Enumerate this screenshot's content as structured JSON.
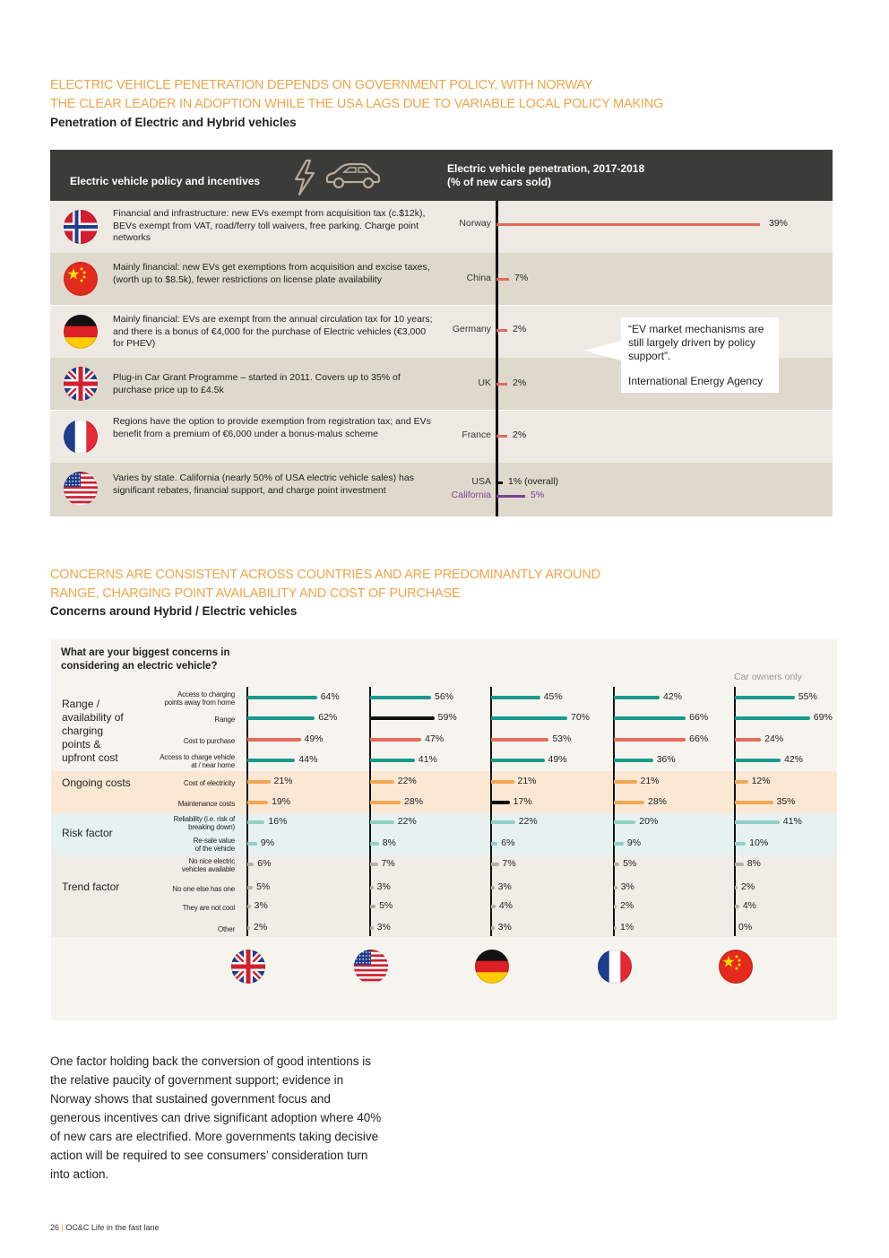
{
  "section1": {
    "title_line1": "ELECTRIC VEHICLE PENETRATION DEPENDS ON GOVERNMENT POLICY, WITH NORWAY",
    "title_line2": "THE CLEAR LEADER IN ADOPTION WHILE THE USA LAGS  DUE TO VARIABLE LOCAL POLICY MAKING",
    "subtitle": "Penetration of Electric and Hybrid vehicles",
    "header_left": "Electric vehicle policy and incentives",
    "header_right_line1": "Electric vehicle penetration, 2017-2018",
    "header_right_line2": "(% of new cars sold)",
    "quote_text": "“EV market mechanisms are still largely driven by policy support”.",
    "quote_source": "International Energy Agency"
  },
  "section2": {
    "title_line1": "CONCERNS ARE CONSISTENT ACROSS COUNTRIES AND ARE PREDOMINANTLY AROUND",
    "title_line2": "RANGE, CHARGING POINT AVAILABILITY AND COST OF PURCHASE",
    "subtitle": "Concerns around Hybrid / Electric vehicles",
    "question_line1": "What are your biggest concerns in",
    "question_line2": "considering an electric vehicle?",
    "car_owners_note": "Car owners only"
  },
  "body_text": "One factor holding back the conversion of good intentions is the relative paucity of government support; evidence in Norway shows that sustained government focus and generous incentives can drive significant adoption where 40% of new cars are electrified. More governments taking decisive action will be required to see consumers’ consideration turn into action.",
  "footer": {
    "page": "26",
    "sep": "|",
    "brand": "OC&C",
    "title": "Life in the fast lane"
  },
  "colors": {
    "orange_heading": "#f0a54a",
    "header_dark": "#3b3b3a",
    "bar_red": "#e06a5a",
    "bar_purple": "#7b3f98",
    "teal": "#1a9a8f",
    "salmon": "#e56b5d",
    "orange": "#f2a653",
    "light_teal": "#8fd0c8",
    "grey": "#b8ad9f"
  },
  "chart_data": [
    {
      "type": "bar",
      "title": "Electric vehicle penetration, 2017-2018 (% of new cars sold)",
      "categories": [
        "Norway",
        "China",
        "Germany",
        "UK",
        "France",
        "USA",
        "California"
      ],
      "values": [
        39,
        7,
        2,
        2,
        2,
        1,
        5
      ],
      "value_labels": [
        "39%",
        "7%",
        "2%",
        "2%",
        "2%",
        "1% (overall)",
        "5%"
      ],
      "policies": [
        "Financial and infrastructure: new EVs exempt from acquisition tax (c.$12k), BEVs exempt from VAT, road/ferry toll waivers, free parking. Charge point networks",
        "Mainly financial: new EVs get exemptions from acquisition and excise taxes, (worth up to $8.5k), fewer restrictions on license plate availability",
        "Mainly financial: EVs are exempt from the annual circulation tax for 10 years; and there is a bonus of €4,000 for the purchase of Electric vehicles (€3,000 for PHEV)",
        "Plug-in Car Grant Programme – started in 2011. Covers up to 35% of purchase price up to £4.5k",
        "Regions have the option to provide exemption from registration tax; and EVs benefit from a premium of €6,000 under a bonus-malus scheme",
        "Varies by state. California (nearly 50% of USA electric vehicle sales) has significant rebates, financial support, and charge point investment"
      ],
      "xlim": [
        0,
        40
      ]
    },
    {
      "type": "bar",
      "title": "What are your biggest concerns in considering an electric vehicle?",
      "groups": [
        {
          "name": "Range / availability of charging points & upfront cost",
          "items": [
            0,
            1,
            2,
            3
          ]
        },
        {
          "name": "Ongoing costs",
          "items": [
            4,
            5
          ]
        },
        {
          "name": "Risk factor",
          "items": [
            6,
            7
          ]
        },
        {
          "name": "Trend factor",
          "items": [
            8,
            9,
            10,
            11
          ]
        }
      ],
      "categories": [
        "Access to charging points away from home",
        "Range",
        "Cost to purchase",
        "Access to charge vehicle at / near home",
        "Cost of electricity",
        "Maintenance costs",
        "Reliability (i.e. risk of breaking down)",
        "Re-sale value of the vehicle",
        "No nice electric vehicles available",
        "No one else has one",
        "They are not cool",
        "Other"
      ],
      "category_labels": [
        [
          "Access to charging",
          "points away from home"
        ],
        [
          "Range"
        ],
        [
          "Cost to purchase"
        ],
        [
          "Access to charge vehicle",
          "at / near home"
        ],
        [
          "Cost of electricity"
        ],
        [
          "Maintenance costs"
        ],
        [
          "Reliability (i.e. risk of",
          "breaking down)"
        ],
        [
          "Re-sale value",
          "of the vehicle"
        ],
        [
          "No nice electric",
          "vehicles available"
        ],
        [
          "No one else has one"
        ],
        [
          "They are not cool"
        ],
        [
          "Other"
        ]
      ],
      "series": [
        {
          "name": "UK",
          "values": [
            64,
            62,
            49,
            44,
            21,
            19,
            16,
            9,
            6,
            5,
            3,
            2
          ],
          "highlight": [],
          "labels": [
            "64%",
            "62%",
            "49%",
            "44%",
            "21%",
            "19%",
            "16%",
            "9%",
            "6%",
            "5%",
            "3%",
            "2%"
          ]
        },
        {
          "name": "USA",
          "values": [
            56,
            59,
            47,
            41,
            22,
            28,
            22,
            8,
            7,
            3,
            5,
            3
          ],
          "highlight": [
            1
          ],
          "labels": [
            "56%",
            "59%",
            "47%",
            "41%",
            "22%",
            "28%",
            "22%",
            "8%",
            "7%",
            "3%",
            "5%",
            "3%"
          ]
        },
        {
          "name": "Germany",
          "values": [
            45,
            70,
            53,
            49,
            21,
            17,
            22,
            6,
            7,
            3,
            4,
            3
          ],
          "highlight": [
            5
          ],
          "labels": [
            "45%",
            "70%",
            "53%",
            "49%",
            "21%",
            "17%",
            "22%",
            "6%",
            "7%",
            "3%",
            "4%",
            "3%"
          ]
        },
        {
          "name": "France",
          "values": [
            42,
            66,
            66,
            36,
            21,
            28,
            20,
            9,
            5,
            3,
            2,
            1
          ],
          "highlight": [],
          "labels": [
            "42%",
            "66%",
            "66%",
            "36%",
            "21%",
            "28%",
            "20%",
            "9%",
            "5%",
            "3%",
            "2%",
            "1%"
          ]
        },
        {
          "name": "China",
          "values": [
            55,
            69,
            24,
            42,
            12,
            35,
            41,
            10,
            8,
            2,
            4,
            0
          ],
          "highlight": [],
          "labels": [
            "55%",
            "69%",
            "24%",
            "42%",
            "12%",
            "35%",
            "41%",
            "10%",
            "8%",
            "2%",
            "4%",
            "0%"
          ]
        }
      ],
      "xlim": [
        0,
        100
      ]
    }
  ]
}
